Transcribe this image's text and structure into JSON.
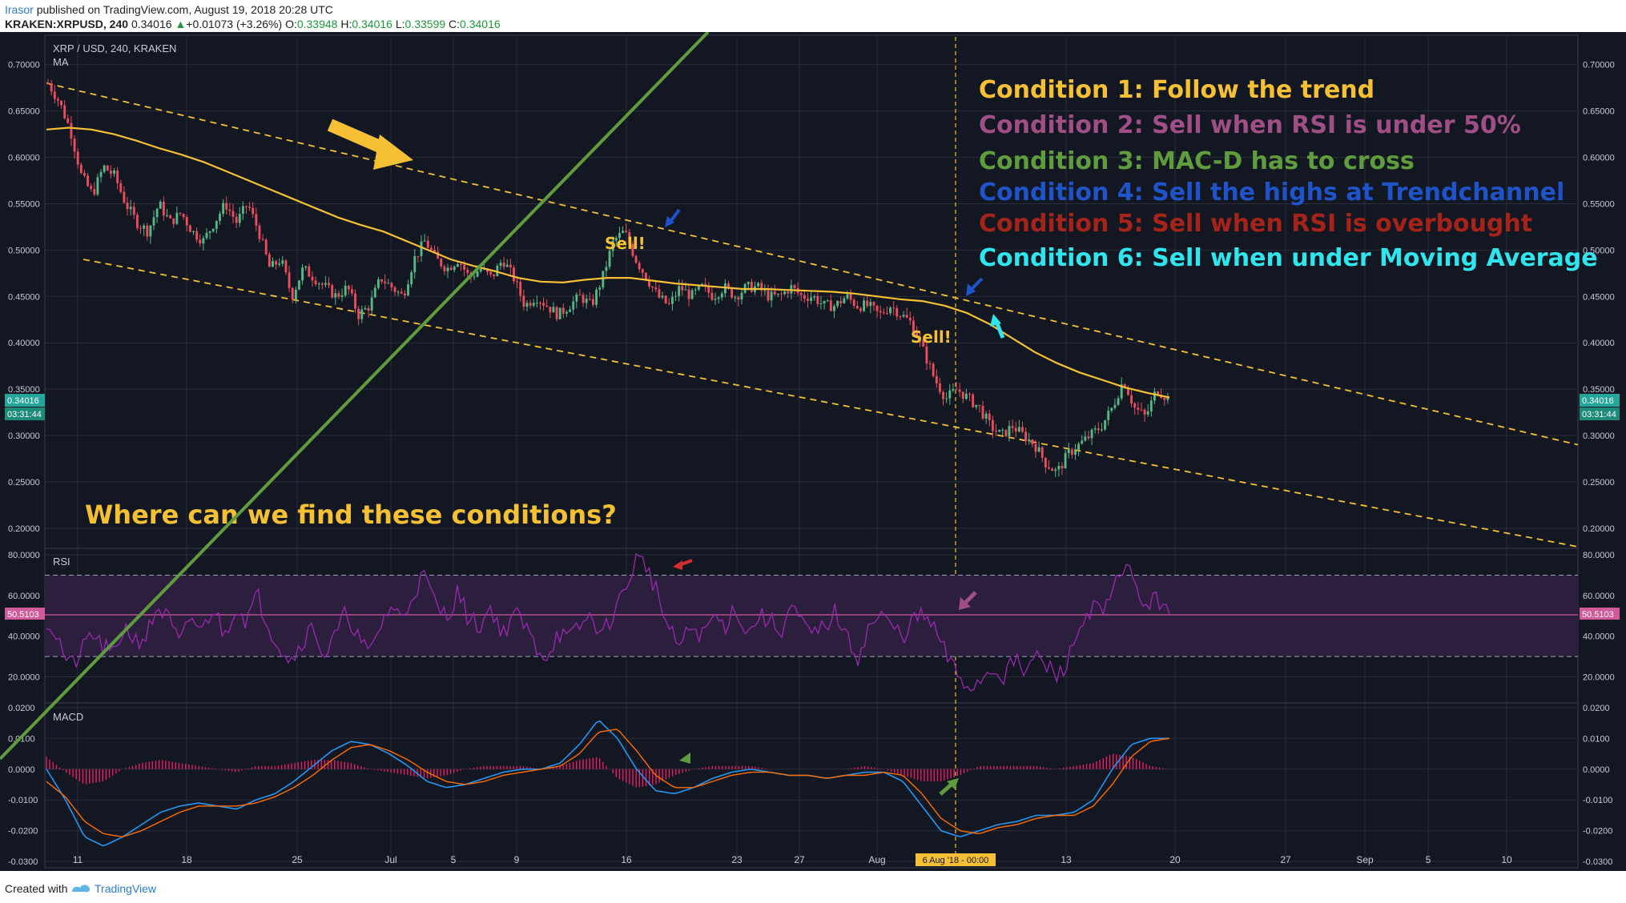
{
  "header": {
    "author": "Irasor",
    "published": "published on TradingView.com, August 19, 2018 20:28 UTC",
    "symbol": "KRAKEN:XRPUSD, 240",
    "last": "0.34016",
    "change": "+0.01073 (+3.26%)",
    "o_label": "O:",
    "o": "0.33948",
    "h_label": "H:",
    "h": "0.34016",
    "l_label": "L:",
    "l": "0.33599",
    "c_label": "C:",
    "c": "0.34016"
  },
  "footer": {
    "created_with": "Created with",
    "brand": "TradingView"
  },
  "colors": {
    "bg": "#131722",
    "yellow": "#f5c033",
    "rsi": "#9c27b0",
    "macd": "#2196f3",
    "signal": "#ff6d00",
    "hist": "#e91e63"
  },
  "annotations": {
    "conditions": [
      {
        "text": "Condition 1: Follow the trend",
        "color": "#f5c033"
      },
      {
        "text": "Condition 2: Sell when RSI is under 50%",
        "color": "#a04e86"
      },
      {
        "text": "Condition 3: MAC-D has to cross",
        "color": "#5f9c3e"
      },
      {
        "text": "Condition 4: Sell the highs at Trendchannel",
        "color": "#1f53c9"
      },
      {
        "text": "Condition 5: Sell when RSI is overbought",
        "color": "#a52318"
      },
      {
        "text": "Condition 6: Sell when under Moving Average",
        "color": "#2fe6ee"
      }
    ],
    "question": "Where can we find these conditions?",
    "sell1": "Sell!",
    "sell2": "Sell!"
  },
  "chart_data": [
    {
      "type": "candlestick",
      "title": "XRP / USD, 240, KRAKEN",
      "indicator": "MA",
      "x_ticks": [
        "11",
        "18",
        "25",
        "Jul",
        "5",
        "9",
        "16",
        "23",
        "27",
        "Aug",
        "6 Aug '18 - 00:00",
        "13",
        "20",
        "27",
        "Sep",
        "5",
        "10"
      ],
      "y_ticks": [
        "0.70000",
        "0.65000",
        "0.60000",
        "0.55000",
        "0.50000",
        "0.45000",
        "0.40000",
        "0.35000",
        "0.30000",
        "0.25000",
        "0.20000"
      ],
      "ylim": [
        0.18,
        0.73
      ],
      "last_price": "0.34016",
      "countdown": "03:31:44",
      "close_path": [
        0.68,
        0.66,
        0.63,
        0.58,
        0.56,
        0.59,
        0.58,
        0.55,
        0.53,
        0.52,
        0.55,
        0.53,
        0.54,
        0.52,
        0.51,
        0.53,
        0.55,
        0.53,
        0.55,
        0.52,
        0.48,
        0.49,
        0.45,
        0.48,
        0.47,
        0.46,
        0.45,
        0.46,
        0.43,
        0.44,
        0.47,
        0.46,
        0.45,
        0.49,
        0.51,
        0.49,
        0.48,
        0.49,
        0.47,
        0.48,
        0.47,
        0.49,
        0.47,
        0.44,
        0.45,
        0.44,
        0.43,
        0.44,
        0.45,
        0.44,
        0.47,
        0.51,
        0.52,
        0.49,
        0.47,
        0.45,
        0.44,
        0.46,
        0.45,
        0.46,
        0.45,
        0.46,
        0.45,
        0.46,
        0.46,
        0.45,
        0.45,
        0.46,
        0.45,
        0.45,
        0.44,
        0.44,
        0.45,
        0.44,
        0.44,
        0.43,
        0.44,
        0.43,
        0.42,
        0.39,
        0.36,
        0.34,
        0.35,
        0.34,
        0.33,
        0.31,
        0.3,
        0.31,
        0.3,
        0.29,
        0.27,
        0.26,
        0.28,
        0.29,
        0.3,
        0.31,
        0.33,
        0.36,
        0.33,
        0.32,
        0.35,
        0.34
      ],
      "ma_path": [
        0.63,
        0.632,
        0.63,
        0.625,
        0.618,
        0.61,
        0.603,
        0.595,
        0.585,
        0.575,
        0.565,
        0.555,
        0.545,
        0.535,
        0.527,
        0.52,
        0.51,
        0.5,
        0.49,
        0.483,
        0.477,
        0.47,
        0.466,
        0.465,
        0.468,
        0.47,
        0.47,
        0.467,
        0.464,
        0.462,
        0.46,
        0.458,
        0.458,
        0.457,
        0.456,
        0.455,
        0.453,
        0.45,
        0.447,
        0.445,
        0.44,
        0.432,
        0.42,
        0.405,
        0.39,
        0.378,
        0.368,
        0.36,
        0.352,
        0.346,
        0.341
      ],
      "ma_range": [
        0.05,
        0.72
      ],
      "trend_upper": [
        [
          0.68,
          0.0
        ],
        [
          0.29,
          1.0
        ]
      ],
      "trend_lower": [
        [
          0.49,
          0.0
        ],
        [
          0.18,
          1.0
        ]
      ]
    },
    {
      "type": "line",
      "title": "RSI",
      "y_ticks": [
        "80.0000",
        "60.0000",
        "40.0000",
        "20.0000"
      ],
      "ylim": [
        8,
        82
      ],
      "upper_band": 70,
      "lower_band": 30,
      "last_value": "50.5103",
      "values": [
        48,
        40,
        25,
        30,
        42,
        35,
        30,
        45,
        38,
        40,
        55,
        48,
        35,
        50,
        42,
        55,
        40,
        55,
        48,
        60,
        45,
        35,
        28,
        38,
        45,
        30,
        40,
        52,
        40,
        30,
        45,
        55,
        48,
        62,
        70,
        55,
        50,
        62,
        48,
        45,
        55,
        40,
        52,
        45,
        35,
        30,
        42,
        38,
        45,
        50,
        40,
        52,
        62,
        78,
        75,
        60,
        42,
        35,
        45,
        40,
        50,
        45,
        55,
        40,
        50,
        48,
        42,
        55,
        45,
        40,
        45,
        52,
        38,
        30,
        45,
        50,
        45,
        40,
        48,
        50,
        42,
        30,
        20,
        15,
        18,
        25,
        20,
        28,
        22,
        30,
        25,
        20,
        30,
        45,
        55,
        50,
        62,
        78,
        62,
        55,
        58,
        55
      ]
    },
    {
      "type": "line",
      "title": "MACD",
      "y_ticks": [
        "0.0200",
        "0.0100",
        "0.0000",
        "-0.0100",
        "-0.0200",
        "-0.0300"
      ],
      "ylim": [
        -0.031,
        0.021
      ],
      "macd": [
        0,
        -0.01,
        -0.022,
        -0.025,
        -0.022,
        -0.018,
        -0.014,
        -0.012,
        -0.011,
        -0.012,
        -0.013,
        -0.01,
        -0.008,
        -0.004,
        0.001,
        0.006,
        0.009,
        0.008,
        0.005,
        0.001,
        -0.004,
        -0.006,
        -0.005,
        -0.003,
        -0.001,
        0,
        0,
        0.002,
        0.008,
        0.016,
        0.01,
        0,
        -0.007,
        -0.008,
        -0.006,
        -0.003,
        -0.001,
        0,
        -0.001,
        -0.002,
        -0.002,
        -0.003,
        -0.002,
        -0.001,
        -0.001,
        -0.004,
        -0.012,
        -0.02,
        -0.022,
        -0.02,
        -0.018,
        -0.017,
        -0.015,
        -0.015,
        -0.014,
        -0.01,
        0,
        0.008,
        0.01,
        0.01
      ],
      "signal": [
        -0.004,
        -0.009,
        -0.017,
        -0.021,
        -0.022,
        -0.02,
        -0.017,
        -0.014,
        -0.012,
        -0.012,
        -0.012,
        -0.011,
        -0.009,
        -0.006,
        -0.002,
        0.003,
        0.007,
        0.008,
        0.006,
        0.003,
        -0.001,
        -0.004,
        -0.005,
        -0.004,
        -0.002,
        -0.001,
        0,
        0.001,
        0.005,
        0.012,
        0.013,
        0.006,
        -0.002,
        -0.006,
        -0.006,
        -0.004,
        -0.002,
        -0.001,
        -0.001,
        -0.002,
        -0.002,
        -0.003,
        -0.002,
        -0.002,
        -0.001,
        -0.002,
        -0.008,
        -0.016,
        -0.02,
        -0.021,
        -0.019,
        -0.018,
        -0.016,
        -0.015,
        -0.015,
        -0.012,
        -0.005,
        0.004,
        0.009,
        0.01
      ]
    }
  ]
}
